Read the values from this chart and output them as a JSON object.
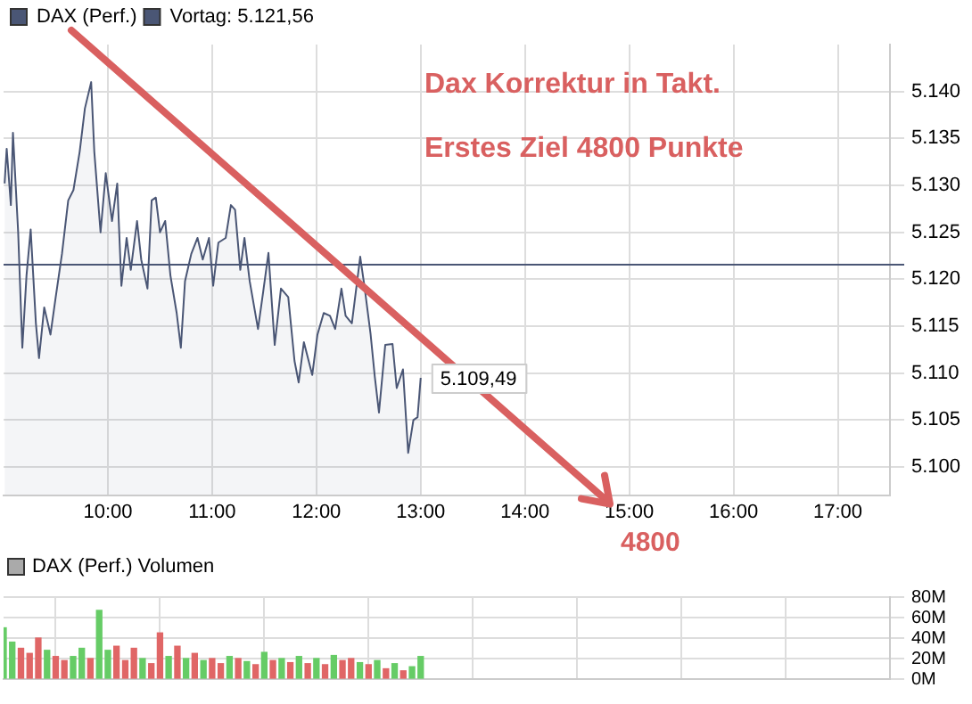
{
  "chart_data": [
    {
      "type": "area",
      "legend": "top left",
      "grid": true,
      "xlim": [
        9,
        17.5
      ],
      "xticks": [
        {
          "value": 10,
          "label": "10:00"
        },
        {
          "value": 11,
          "label": "11:00"
        },
        {
          "value": 12,
          "label": "12:00"
        },
        {
          "value": 13,
          "label": "13:00"
        },
        {
          "value": 14,
          "label": "14:00"
        },
        {
          "value": 15,
          "label": "15:00"
        },
        {
          "value": 16,
          "label": "16:00"
        },
        {
          "value": 17,
          "label": "17:00"
        }
      ],
      "ylim": [
        5097,
        5145
      ],
      "yticks": [
        {
          "value": 5100,
          "label": "5.100"
        },
        {
          "value": 5105,
          "label": "5.105"
        },
        {
          "value": 5110,
          "label": "5.110"
        },
        {
          "value": 5115,
          "label": "5.115"
        },
        {
          "value": 5120,
          "label": "5.120"
        },
        {
          "value": 5125,
          "label": "5.125"
        },
        {
          "value": 5130,
          "label": "5.130"
        },
        {
          "value": 5135,
          "label": "5.135"
        },
        {
          "value": 5140,
          "label": "5.140"
        }
      ],
      "series": [
        {
          "name": "DAX (Perf.)",
          "color": "#4a5675",
          "x": [
            9.01,
            9.03,
            9.07,
            9.09,
            9.14,
            9.18,
            9.22,
            9.26,
            9.31,
            9.34,
            9.39,
            9.45,
            9.5,
            9.56,
            9.62,
            9.67,
            9.73,
            9.78,
            9.84,
            9.87,
            9.93,
            9.98,
            10.04,
            10.09,
            10.13,
            10.18,
            10.22,
            10.28,
            10.32,
            10.38,
            10.42,
            10.46,
            10.5,
            10.55,
            10.6,
            10.66,
            10.7,
            10.74,
            10.8,
            10.86,
            10.91,
            10.97,
            11.01,
            11.06,
            11.13,
            11.18,
            11.22,
            11.27,
            11.31,
            11.36,
            11.44,
            11.49,
            11.54,
            11.6,
            11.66,
            11.73,
            11.79,
            11.83,
            11.88,
            11.96,
            12.01,
            12.07,
            12.13,
            12.18,
            12.24,
            12.28,
            12.34,
            12.42,
            12.46,
            12.52,
            12.56,
            12.6,
            12.66,
            12.73,
            12.77,
            12.83,
            12.88,
            12.93,
            12.97,
            13
          ],
          "values": [
            5130.2,
            5133.9,
            5127.9,
            5135.6,
            5125,
            5112.7,
            5120.4,
            5125.3,
            5115.3,
            5111.6,
            5117,
            5114.1,
            5118.1,
            5122.7,
            5128.4,
            5129.5,
            5133.6,
            5138.2,
            5141,
            5133.6,
            5125,
            5131.3,
            5126.2,
            5130.2,
            5119.3,
            5124.4,
            5121,
            5126.2,
            5122.1,
            5119,
            5128.4,
            5128.7,
            5125,
            5126.2,
            5120.4,
            5116.4,
            5112.7,
            5119.8,
            5122.7,
            5124.4,
            5122.1,
            5124.4,
            5119.3,
            5123.9,
            5124.4,
            5127.9,
            5127.4,
            5121,
            5124.4,
            5119.8,
            5114.7,
            5118.7,
            5122.8,
            5113,
            5119,
            5118.1,
            5111.3,
            5109,
            5113.3,
            5109.8,
            5114.1,
            5116.4,
            5116.1,
            5114.7,
            5119,
            5116.1,
            5115.3,
            5122.4,
            5119.3,
            5114.1,
            5109.6,
            5105.8,
            5113,
            5113.1,
            5108.4,
            5110.4,
            5101.5,
            5105,
            5105.3,
            5109.49
          ]
        }
      ],
      "ref_lines": [
        {
          "axis": "y",
          "value": 5121.56,
          "label": "Vortag: 5.121,56",
          "color": "#4a5675"
        }
      ],
      "annotations": [
        "Dax Korrektur in Takt.",
        "Erstes Ziel 4800 Punkte",
        "4800",
        {
          "text": "5.109,49",
          "x": 13,
          "y": 5109.49
        }
      ]
    },
    {
      "type": "bar",
      "legend": "top left",
      "grid": true,
      "tick_labels": "y",
      "xlim": [
        9,
        17.5
      ],
      "xticks": [
        10,
        11,
        12,
        13,
        14,
        15,
        16,
        17
      ],
      "ylim": [
        0,
        80
      ],
      "yticks": [
        {
          "value": 0,
          "label": "0M"
        },
        {
          "value": 20,
          "label": "20M"
        },
        {
          "value": 40,
          "label": "40M"
        },
        {
          "value": 60,
          "label": "60M"
        },
        {
          "value": 80,
          "label": "80M"
        }
      ],
      "series": [
        {
          "name": "DAX (Perf.) Volumen",
          "color": "#aaaaaa",
          "x": [
            9,
            9.083,
            9.167,
            9.25,
            9.333,
            9.417,
            9.5,
            9.583,
            9.667,
            9.75,
            9.833,
            9.917,
            10,
            10.083,
            10.167,
            10.25,
            10.333,
            10.417,
            10.5,
            10.583,
            10.667,
            10.75,
            10.833,
            10.917,
            11,
            11.083,
            11.167,
            11.25,
            11.333,
            11.417,
            11.5,
            11.583,
            11.667,
            11.75,
            11.833,
            11.917,
            12,
            12.083,
            12.167,
            12.25,
            12.333,
            12.417,
            12.5,
            12.583,
            12.667,
            12.75,
            12.833,
            12.917,
            13
          ],
          "values": [
            50,
            36,
            30,
            25,
            40,
            28,
            22,
            18,
            22,
            30,
            20,
            67,
            28,
            32,
            18,
            30,
            20,
            15,
            45,
            22,
            32,
            20,
            25,
            18,
            20,
            15,
            22,
            20,
            17,
            14,
            26,
            18,
            20,
            16,
            22,
            15,
            20,
            14,
            23,
            18,
            20,
            16,
            14,
            18,
            10,
            15,
            8,
            12,
            22
          ],
          "colors": [
            "#66cc66",
            "#66cc66",
            "#e06666",
            "#e06666",
            "#e06666",
            "#66cc66",
            "#e06666",
            "#e06666",
            "#66cc66",
            "#66cc66",
            "#e06666",
            "#66cc66",
            "#66cc66",
            "#e06666",
            "#e06666",
            "#e06666",
            "#66cc66",
            "#e06666",
            "#e06666",
            "#66cc66",
            "#e06666",
            "#66cc66",
            "#e06666",
            "#66cc66",
            "#e06666",
            "#e06666",
            "#66cc66",
            "#e06666",
            "#66cc66",
            "#e06666",
            "#66cc66",
            "#e06666",
            "#66cc66",
            "#e06666",
            "#66cc66",
            "#e06666",
            "#66cc66",
            "#e06666",
            "#66cc66",
            "#e06666",
            "#e06666",
            "#66cc66",
            "#e06666",
            "#66cc66",
            "#e06666",
            "#66cc66",
            "#e06666",
            "#66cc66",
            "#66cc66"
          ]
        }
      ]
    }
  ]
}
